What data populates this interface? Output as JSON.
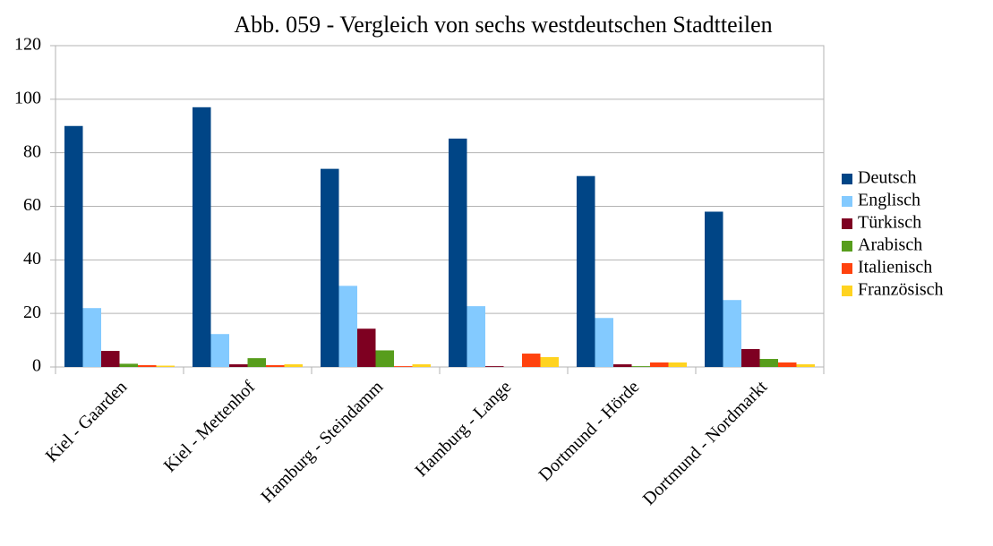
{
  "chart_data": {
    "type": "bar",
    "title": "Abb. 059 - Vergleich von sechs westdeutschen Stadtteilen",
    "categories": [
      "Kiel - Gaarden",
      "Kiel - Mettenhof",
      "Hamburg - Steindamm",
      "Hamburg - Lange",
      "Dortmund - Hörde",
      "Dortmund - Nordmarkt"
    ],
    "series": [
      {
        "name": "Deutsch",
        "color": "#004586",
        "values": [
          90,
          97,
          74,
          85.3,
          71.3,
          58
        ]
      },
      {
        "name": "Englisch",
        "color": "#83caff",
        "values": [
          22,
          12.3,
          30.3,
          22.7,
          18.3,
          25
        ]
      },
      {
        "name": "Türkisch",
        "color": "#7e0021",
        "values": [
          6,
          1,
          14.3,
          0.3,
          1,
          6.7
        ]
      },
      {
        "name": "Arabisch",
        "color": "#579d1c",
        "values": [
          1.2,
          3.3,
          6.2,
          0,
          0.3,
          3
        ]
      },
      {
        "name": "Italienisch",
        "color": "#ff420e",
        "values": [
          0.7,
          0.7,
          0.3,
          5,
          1.7,
          1.7
        ]
      },
      {
        "name": "Französisch",
        "color": "#ffd320",
        "values": [
          0.5,
          1,
          1,
          3.7,
          1.7,
          1
        ]
      }
    ],
    "ylim": [
      0,
      120
    ],
    "yticks": [
      0,
      20,
      40,
      60,
      80,
      100,
      120
    ],
    "grid": true,
    "legend": "right"
  }
}
